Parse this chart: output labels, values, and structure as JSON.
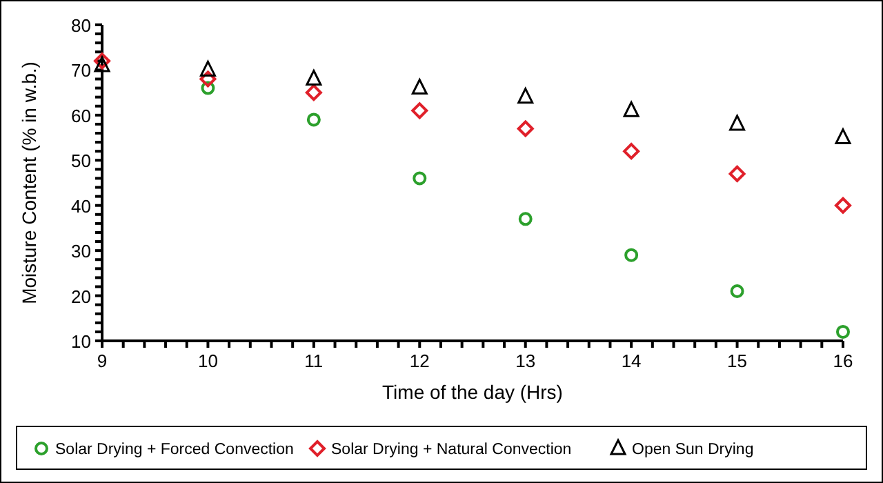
{
  "chart_data": {
    "type": "scatter",
    "xlabel": "Time of the day (Hrs)",
    "ylabel": "Moisture Content (% in w.b.)",
    "x": [
      9,
      10,
      11,
      12,
      13,
      14,
      15,
      16
    ],
    "series": [
      {
        "name": "Solar Drying + Forced Convection",
        "color": "#2ca02c",
        "marker": "circle",
        "values": [
          null,
          66,
          59,
          46,
          37,
          29,
          21,
          12
        ]
      },
      {
        "name": "Solar Drying + Natural Convection",
        "color": "#e0202a",
        "marker": "diamond",
        "values": [
          72,
          68,
          65,
          61,
          57,
          52,
          47,
          40
        ]
      },
      {
        "name": "Open Sun Drying",
        "color": "#000000",
        "marker": "triangle",
        "values": [
          71,
          70,
          68,
          66,
          64,
          61,
          58,
          55
        ]
      }
    ],
    "xlim": [
      9,
      16
    ],
    "ylim": [
      10,
      80
    ],
    "xticks": [
      9,
      {
        "value": 9.2,
        "label": null
      },
      {
        "value": 9.4,
        "label": null
      },
      {
        "value": 9.6,
        "label": null
      },
      {
        "value": 9.8,
        "label": null
      },
      10,
      {
        "value": 10.2,
        "label": null
      },
      {
        "value": 10.4,
        "label": null
      },
      {
        "value": 10.6,
        "label": null
      },
      {
        "value": 10.8,
        "label": null
      },
      11,
      {
        "value": 11.2,
        "label": null
      },
      {
        "value": 11.4,
        "label": null
      },
      {
        "value": 11.6,
        "label": null
      },
      {
        "value": 11.8,
        "label": null
      },
      12,
      {
        "value": 12.2,
        "label": null
      },
      {
        "value": 12.4,
        "label": null
      },
      {
        "value": 12.6,
        "label": null
      },
      {
        "value": 12.8,
        "label": null
      },
      13,
      {
        "value": 13.2,
        "label": null
      },
      {
        "value": 13.4,
        "label": null
      },
      {
        "value": 13.6,
        "label": null
      },
      {
        "value": 13.8,
        "label": null
      },
      14,
      {
        "value": 14.2,
        "label": null
      },
      {
        "value": 14.4,
        "label": null
      },
      {
        "value": 14.6,
        "label": null
      },
      {
        "value": 14.8,
        "label": null
      },
      15,
      {
        "value": 15.2,
        "label": null
      },
      {
        "value": 15.4,
        "label": null
      },
      {
        "value": 15.6,
        "label": null
      },
      {
        "value": 15.8,
        "label": null
      },
      16
    ],
    "yticks": [
      10,
      {
        "value": 12,
        "label": null
      },
      {
        "value": 14,
        "label": null
      },
      {
        "value": 16,
        "label": null
      },
      {
        "value": 18,
        "label": null
      },
      20,
      {
        "value": 22,
        "label": null
      },
      {
        "value": 24,
        "label": null
      },
      {
        "value": 26,
        "label": null
      },
      {
        "value": 28,
        "label": null
      },
      30,
      {
        "value": 32,
        "label": null
      },
      {
        "value": 34,
        "label": null
      },
      {
        "value": 36,
        "label": null
      },
      {
        "value": 38,
        "label": null
      },
      40,
      {
        "value": 42,
        "label": null
      },
      {
        "value": 44,
        "label": null
      },
      {
        "value": 46,
        "label": null
      },
      {
        "value": 48,
        "label": null
      },
      50,
      {
        "value": 52,
        "label": null
      },
      {
        "value": 54,
        "label": null
      },
      {
        "value": 56,
        "label": null
      },
      {
        "value": 58,
        "label": null
      },
      60,
      {
        "value": 62,
        "label": null
      },
      {
        "value": 64,
        "label": null
      },
      {
        "value": 66,
        "label": null
      },
      {
        "value": 68,
        "label": null
      },
      70,
      {
        "value": 72,
        "label": null
      },
      {
        "value": 74,
        "label": null
      },
      {
        "value": 76,
        "label": null
      },
      {
        "value": 78,
        "label": null
      },
      80
    ],
    "grid": false,
    "legend": "bottom"
  }
}
